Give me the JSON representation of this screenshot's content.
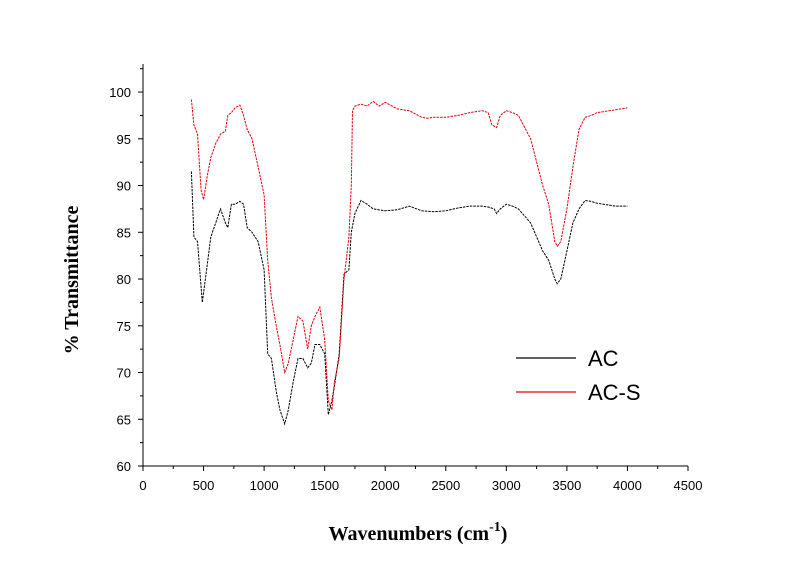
{
  "chart_data": {
    "type": "line",
    "title": "",
    "xlabel": "Wavenumbers (cm",
    "xlabel_sup": "-1",
    "xlabel_close": ")",
    "ylabel": "%  Transmittance",
    "xlim": [
      0,
      4500
    ],
    "ylim": [
      60,
      103
    ],
    "x_ticks": [
      "0",
      "500",
      "1000",
      "1500",
      "2000",
      "2500",
      "3000",
      "3500",
      "4000",
      "4500"
    ],
    "y_ticks": [
      "60",
      "65",
      "70",
      "75",
      "80",
      "85",
      "90",
      "95",
      "100"
    ],
    "grid": false,
    "legend_position": "lower-right",
    "series": [
      {
        "name": "AC",
        "color": "#000000",
        "x": [
          400,
          420,
          450,
          490,
          520,
          560,
          600,
          640,
          680,
          700,
          730,
          760,
          800,
          830,
          860,
          900,
          950,
          1000,
          1030,
          1060,
          1100,
          1130,
          1170,
          1200,
          1240,
          1280,
          1320,
          1360,
          1390,
          1420,
          1460,
          1500,
          1530,
          1560,
          1580,
          1620,
          1660,
          1700,
          1720,
          1750,
          1800,
          1850,
          1900,
          2000,
          2100,
          2200,
          2300,
          2400,
          2500,
          2600,
          2700,
          2800,
          2850,
          2900,
          2920,
          2950,
          3000,
          3050,
          3100,
          3200,
          3300,
          3350,
          3400,
          3420,
          3450,
          3500,
          3550,
          3600,
          3650,
          3700,
          3750,
          3800,
          3900,
          4000
        ],
        "y": [
          91.5,
          84.5,
          84,
          77.5,
          80.5,
          84.5,
          86,
          87.5,
          86,
          85.5,
          88,
          88,
          88.3,
          88,
          85.5,
          85,
          84,
          81,
          72,
          71.5,
          68,
          66,
          64.5,
          66,
          69,
          71.5,
          71.5,
          70.5,
          71,
          73,
          73,
          72,
          65.5,
          67,
          68.5,
          72,
          80.5,
          81,
          85,
          87,
          88.4,
          88,
          87.5,
          87.3,
          87.4,
          87.8,
          87.3,
          87.2,
          87.3,
          87.6,
          87.8,
          87.8,
          87.7,
          87.5,
          87,
          87.5,
          88,
          87.8,
          87.5,
          86,
          83,
          82,
          80,
          79.5,
          80,
          83,
          86,
          87.5,
          88.4,
          88.3,
          88.1,
          88,
          87.8,
          87.8
        ]
      },
      {
        "name": "AC-S",
        "color": "#e8000b",
        "x": [
          400,
          420,
          450,
          480,
          500,
          530,
          560,
          600,
          640,
          680,
          700,
          730,
          760,
          800,
          830,
          860,
          900,
          950,
          1000,
          1030,
          1060,
          1100,
          1130,
          1170,
          1200,
          1240,
          1280,
          1320,
          1360,
          1390,
          1420,
          1460,
          1500,
          1530,
          1560,
          1580,
          1620,
          1660,
          1700,
          1720,
          1730,
          1750,
          1800,
          1850,
          1900,
          1950,
          2000,
          2100,
          2200,
          2300,
          2350,
          2400,
          2500,
          2600,
          2700,
          2800,
          2850,
          2880,
          2920,
          2950,
          3000,
          3050,
          3100,
          3200,
          3300,
          3350,
          3400,
          3420,
          3450,
          3500,
          3550,
          3600,
          3650,
          3700,
          3750,
          3800,
          3900,
          4000
        ],
        "y": [
          99.2,
          96.5,
          95.5,
          89.5,
          88.5,
          91,
          93,
          94.5,
          95.5,
          95.8,
          97.5,
          97.8,
          98.3,
          98.6,
          97.5,
          96,
          95,
          92,
          89,
          82,
          78,
          75,
          73,
          70,
          71,
          73.5,
          76,
          75.5,
          72.5,
          75,
          76,
          77,
          73.5,
          67,
          66,
          69,
          71.5,
          80,
          84.5,
          90,
          98,
          98.5,
          98.7,
          98.5,
          99,
          98.5,
          98.9,
          98.2,
          98,
          97.3,
          97.2,
          97.3,
          97.3,
          97.5,
          97.8,
          98,
          97.8,
          96.5,
          96.2,
          97.5,
          98,
          97.8,
          97.5,
          95,
          90,
          88,
          84,
          83.5,
          84,
          87.5,
          92,
          96,
          97.3,
          97.5,
          97.8,
          97.9,
          98.1,
          98.3
        ]
      }
    ]
  }
}
